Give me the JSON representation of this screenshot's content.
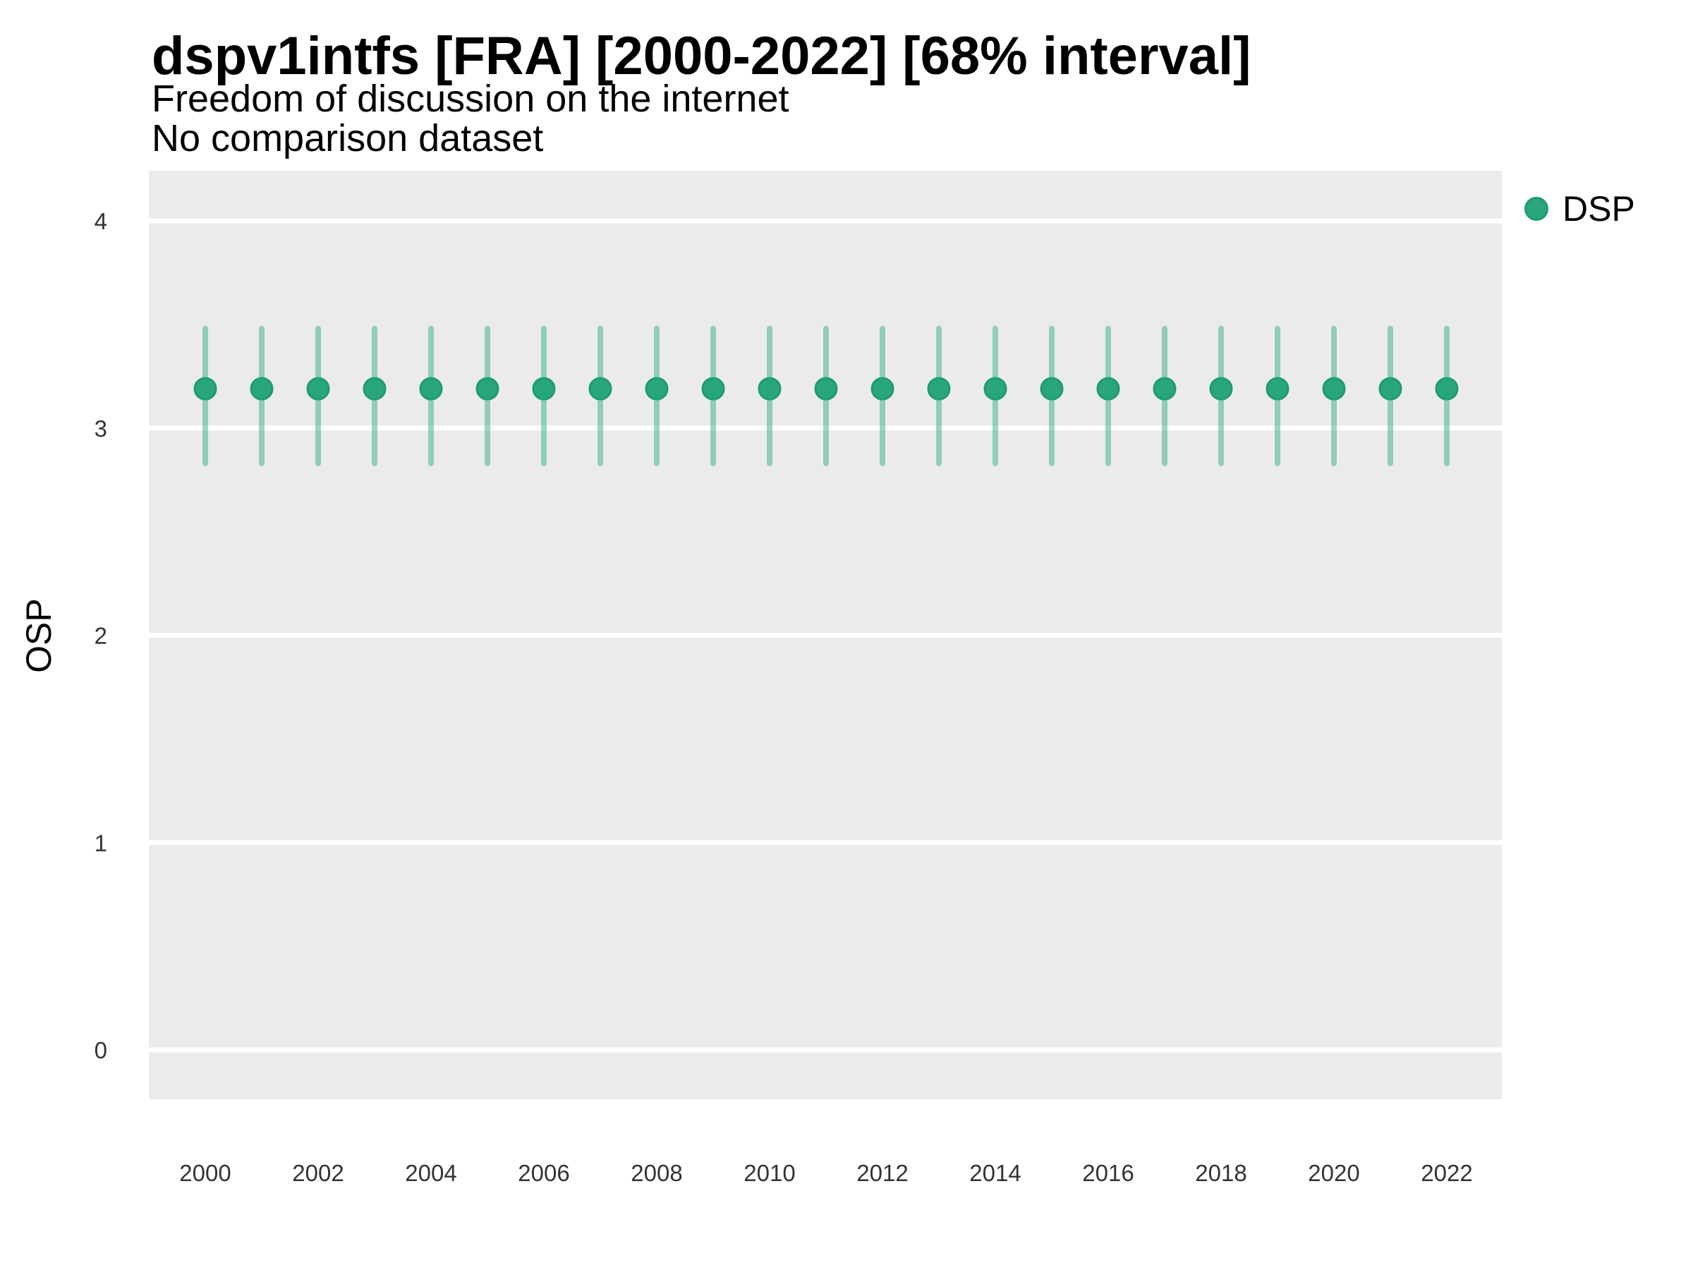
{
  "header": {
    "title": "dspv1intfs [FRA] [2000-2022] [68% interval]",
    "subtitle1": "Freedom of discussion on the internet",
    "subtitle2": "No comparison dataset"
  },
  "axes": {
    "y_title": "OSP"
  },
  "legend": {
    "label": "DSP"
  },
  "colors": {
    "point_fill": "#2AA57D",
    "point_stroke": "#1E9B73",
    "interval": "#1EA97D",
    "panel_bg": "#EBEBEB",
    "grid": "#FFFFFF",
    "tick_text": "#333333"
  },
  "chart_data": {
    "type": "pointrange",
    "title": "dspv1intfs [FRA] [2000-2022] [68% interval]",
    "subtitle": [
      "Freedom of discussion on the internet",
      "No comparison dataset"
    ],
    "xlabel": "",
    "ylabel": "OSP",
    "interval_level": "68%",
    "ylim": [
      0,
      4
    ],
    "grid": "horizontal-major-only",
    "legend_position": "right-top",
    "legend_entries": [
      "DSP"
    ],
    "x": [
      2000,
      2001,
      2002,
      2003,
      2004,
      2005,
      2006,
      2007,
      2008,
      2009,
      2010,
      2011,
      2012,
      2013,
      2014,
      2015,
      2016,
      2017,
      2018,
      2019,
      2020,
      2021,
      2022
    ],
    "series": [
      {
        "name": "DSP",
        "estimate": [
          3.19,
          3.19,
          3.19,
          3.19,
          3.19,
          3.19,
          3.19,
          3.19,
          3.19,
          3.19,
          3.19,
          3.19,
          3.19,
          3.19,
          3.19,
          3.19,
          3.19,
          3.19,
          3.19,
          3.19,
          3.19,
          3.19,
          3.19
        ],
        "lower": [
          2.83,
          2.83,
          2.83,
          2.83,
          2.83,
          2.83,
          2.83,
          2.83,
          2.83,
          2.83,
          2.83,
          2.83,
          2.83,
          2.83,
          2.83,
          2.83,
          2.83,
          2.83,
          2.83,
          2.83,
          2.83,
          2.83,
          2.83
        ],
        "upper": [
          3.48,
          3.48,
          3.48,
          3.48,
          3.48,
          3.48,
          3.48,
          3.48,
          3.48,
          3.48,
          3.48,
          3.48,
          3.48,
          3.48,
          3.48,
          3.48,
          3.48,
          3.48,
          3.48,
          3.48,
          3.48,
          3.48,
          3.48
        ]
      }
    ],
    "x_ticks": [
      2000,
      2002,
      2004,
      2006,
      2008,
      2010,
      2012,
      2014,
      2016,
      2018,
      2020,
      2022
    ],
    "y_ticks": [
      0,
      1,
      2,
      3,
      4
    ]
  }
}
